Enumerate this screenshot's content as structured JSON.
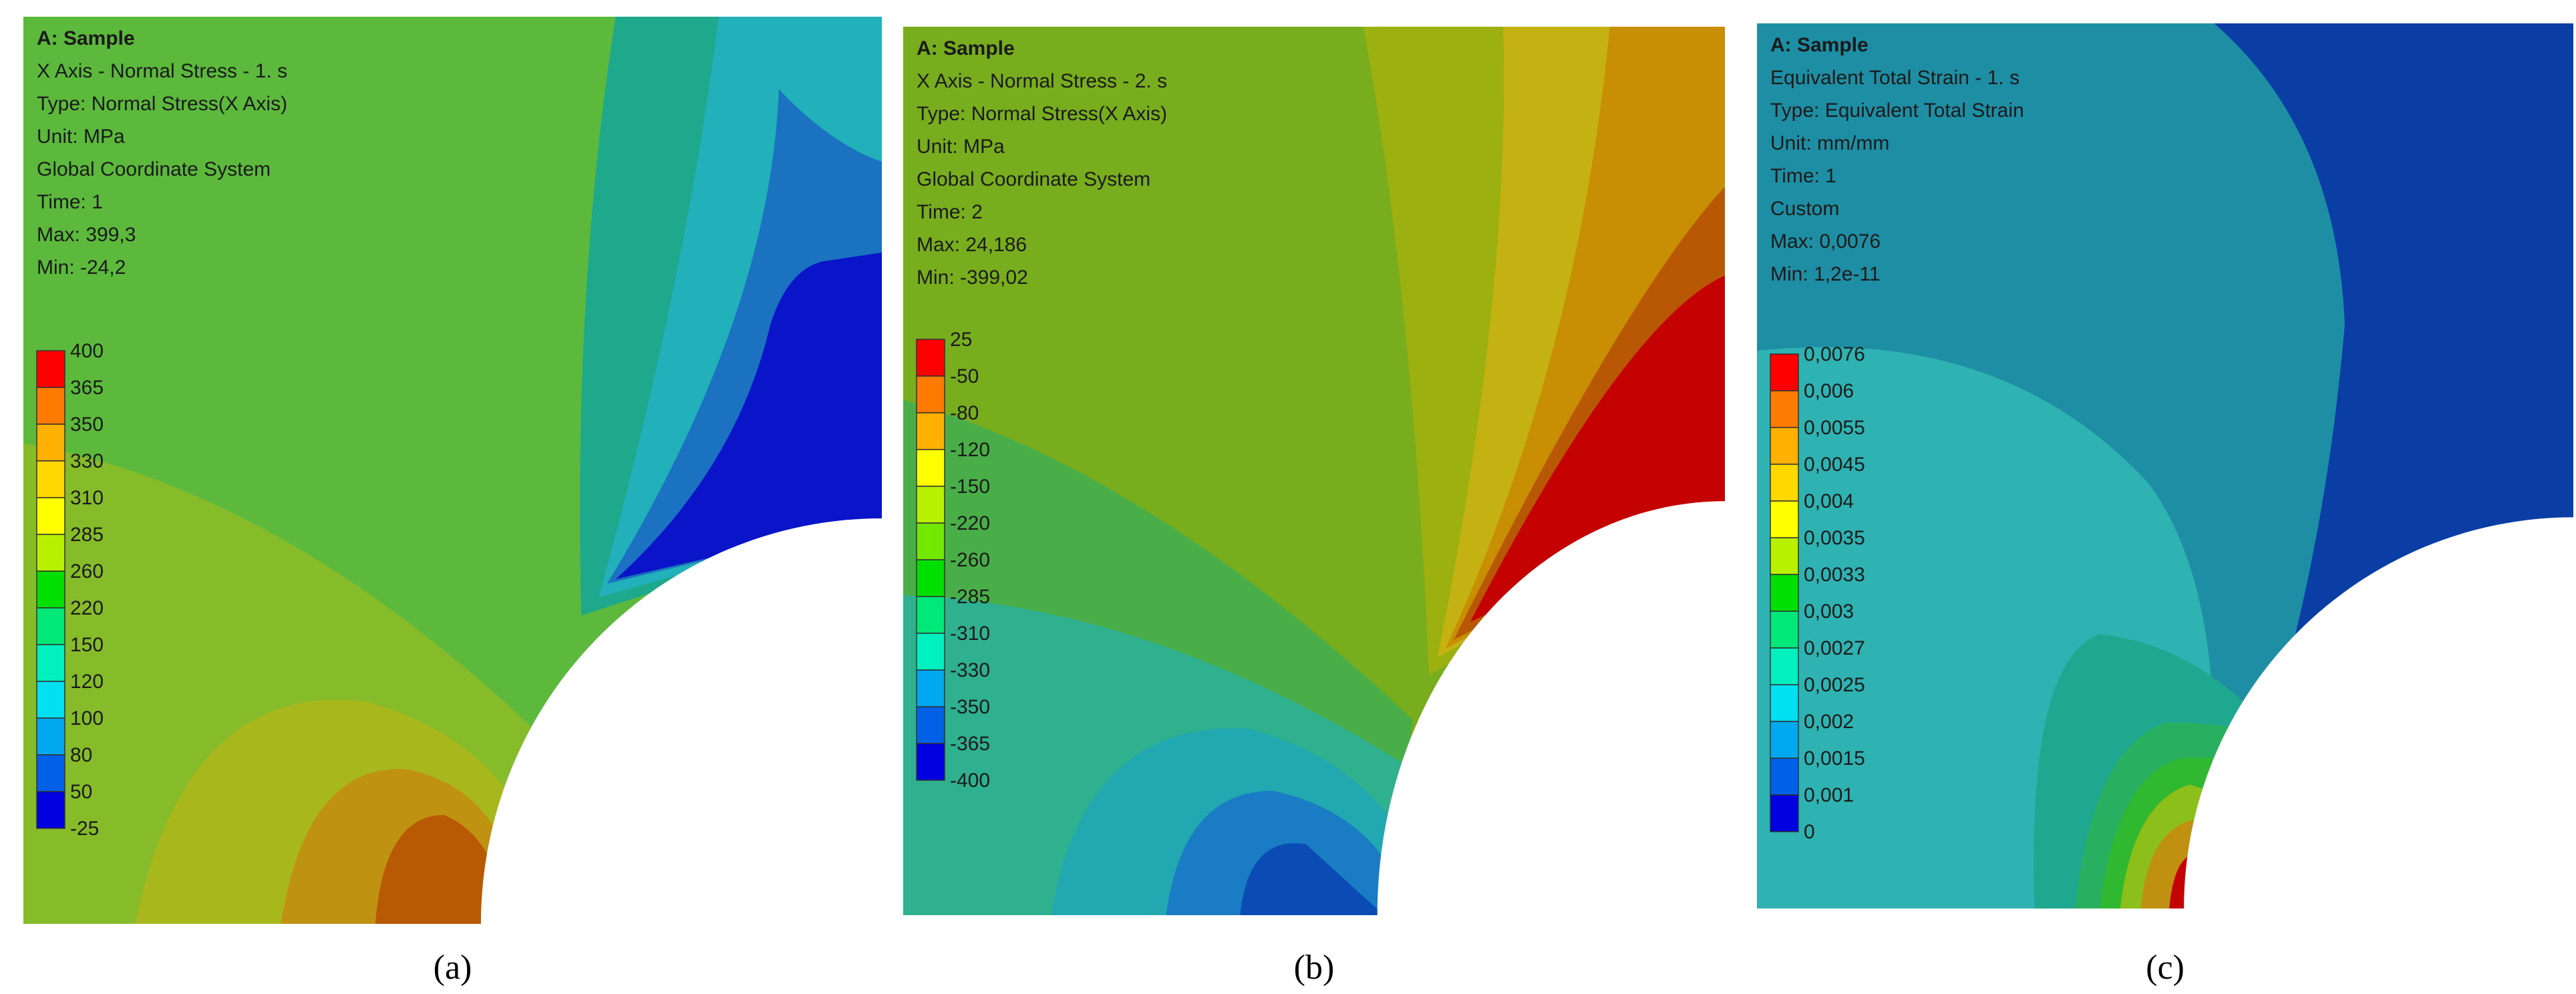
{
  "panels": [
    {
      "header": [
        "A: Sample",
        "X Axis - Normal Stress - 1. s",
        "Type: Normal Stress(X Axis)",
        "Unit: MPa",
        "Global Coordinate System",
        "Time: 1",
        "Max: 399,3",
        "Min: -24,2"
      ],
      "legend": [
        "400",
        "365",
        "350",
        "330",
        "310",
        "285",
        "260",
        "220",
        "150",
        "120",
        "100",
        "80",
        "50",
        "-25"
      ],
      "caption": "(a)"
    },
    {
      "header": [
        "A: Sample",
        "X Axis - Normal Stress - 2. s",
        "Type: Normal Stress(X Axis)",
        "Unit: MPa",
        "Global Coordinate System",
        "Time: 2",
        "Max: 24,186",
        "Min: -399,02"
      ],
      "legend": [
        "25",
        "-50",
        "-80",
        "-120",
        "-150",
        "-220",
        "-260",
        "-285",
        "-310",
        "-330",
        "-350",
        "-365",
        "-400"
      ],
      "caption": "(b)"
    },
    {
      "header": [
        "A: Sample",
        "Equivalent Total Strain - 1. s",
        "Type: Equivalent Total Strain",
        "Unit: mm/mm",
        "Time: 1",
        "Custom",
        "Max: 0,0076",
        "Min: 1,2e-11"
      ],
      "legend": [
        "0,0076",
        "0,006",
        "0,0055",
        "0,0045",
        "0,004",
        "0,0035",
        "0,0033",
        "0,003",
        "0,0027",
        "0,0025",
        "0,002",
        "0,0015",
        "0,001",
        "0"
      ],
      "caption": "(c)"
    }
  ]
}
